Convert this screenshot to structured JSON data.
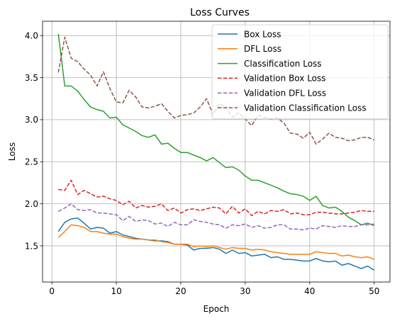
{
  "chart_data": {
    "type": "line",
    "title": "Loss Curves",
    "xlabel": "Epoch",
    "ylabel": "Loss",
    "xlim": [
      -1.45,
      52.45
    ],
    "ylim": [
      1.07,
      4.17
    ],
    "xticks": [
      0,
      10,
      20,
      30,
      40,
      50
    ],
    "yticks": [
      1.5,
      2.0,
      2.5,
      3.0,
      3.5,
      4.0
    ],
    "grid": true,
    "legend": "top-right",
    "x": [
      1,
      2,
      3,
      4,
      5,
      6,
      7,
      8,
      9,
      10,
      11,
      12,
      13,
      14,
      15,
      16,
      17,
      18,
      19,
      20,
      21,
      22,
      23,
      24,
      25,
      26,
      27,
      28,
      29,
      30,
      31,
      32,
      33,
      34,
      35,
      36,
      37,
      38,
      39,
      40,
      41,
      42,
      43,
      44,
      45,
      46,
      47,
      48,
      49,
      50
    ],
    "series": [
      {
        "name": "Box Loss",
        "color": "#1f77b4",
        "dash": "solid",
        "values": [
          1.67,
          1.78,
          1.82,
          1.83,
          1.77,
          1.7,
          1.72,
          1.71,
          1.65,
          1.67,
          1.63,
          1.61,
          1.59,
          1.58,
          1.57,
          1.56,
          1.56,
          1.55,
          1.52,
          1.52,
          1.51,
          1.45,
          1.47,
          1.47,
          1.48,
          1.46,
          1.41,
          1.45,
          1.41,
          1.42,
          1.38,
          1.39,
          1.4,
          1.36,
          1.37,
          1.34,
          1.34,
          1.33,
          1.32,
          1.32,
          1.35,
          1.32,
          1.31,
          1.32,
          1.27,
          1.29,
          1.26,
          1.23,
          1.26,
          1.21
        ]
      },
      {
        "name": "DFL Loss",
        "color": "#ff7f0e",
        "dash": "solid",
        "values": [
          1.6,
          1.67,
          1.75,
          1.74,
          1.72,
          1.67,
          1.67,
          1.65,
          1.64,
          1.64,
          1.61,
          1.59,
          1.58,
          1.58,
          1.57,
          1.57,
          1.55,
          1.54,
          1.52,
          1.52,
          1.52,
          1.49,
          1.5,
          1.49,
          1.5,
          1.48,
          1.46,
          1.48,
          1.47,
          1.47,
          1.45,
          1.46,
          1.45,
          1.43,
          1.42,
          1.41,
          1.4,
          1.4,
          1.4,
          1.4,
          1.43,
          1.42,
          1.41,
          1.41,
          1.38,
          1.39,
          1.37,
          1.36,
          1.37,
          1.34
        ]
      },
      {
        "name": "Classification Loss",
        "color": "#2ca02c",
        "dash": "solid",
        "values": [
          4.02,
          3.4,
          3.4,
          3.34,
          3.24,
          3.15,
          3.12,
          3.1,
          3.02,
          3.03,
          2.94,
          2.9,
          2.86,
          2.81,
          2.79,
          2.82,
          2.71,
          2.72,
          2.66,
          2.61,
          2.61,
          2.58,
          2.55,
          2.51,
          2.55,
          2.49,
          2.43,
          2.44,
          2.4,
          2.33,
          2.28,
          2.28,
          2.25,
          2.22,
          2.19,
          2.15,
          2.12,
          2.11,
          2.09,
          2.04,
          2.09,
          1.98,
          1.95,
          1.96,
          1.91,
          1.84,
          1.8,
          1.75,
          1.77,
          1.74
        ]
      },
      {
        "name": "Validation Box Loss",
        "color": "#d62728",
        "dash": "dashed",
        "values": [
          2.17,
          2.16,
          2.28,
          2.11,
          2.16,
          2.12,
          2.08,
          2.09,
          2.06,
          2.04,
          1.99,
          2.03,
          1.95,
          1.98,
          1.96,
          1.97,
          2.0,
          1.92,
          1.95,
          1.89,
          1.93,
          1.94,
          1.92,
          1.94,
          1.96,
          1.95,
          1.88,
          1.97,
          1.89,
          1.94,
          1.86,
          1.91,
          1.88,
          1.92,
          1.91,
          1.93,
          1.88,
          1.89,
          1.87,
          1.87,
          1.9,
          1.9,
          1.89,
          1.88,
          1.88,
          1.89,
          1.9,
          1.92,
          1.91,
          1.91
        ]
      },
      {
        "name": "Validation DFL Loss",
        "color": "#9467bd",
        "dash": "dashed",
        "values": [
          1.91,
          1.95,
          2.0,
          1.93,
          1.92,
          1.93,
          1.89,
          1.89,
          1.88,
          1.87,
          1.8,
          1.85,
          1.79,
          1.81,
          1.8,
          1.76,
          1.77,
          1.73,
          1.78,
          1.75,
          1.75,
          1.81,
          1.79,
          1.78,
          1.76,
          1.75,
          1.71,
          1.75,
          1.74,
          1.76,
          1.72,
          1.74,
          1.71,
          1.72,
          1.75,
          1.75,
          1.7,
          1.7,
          1.69,
          1.71,
          1.7,
          1.74,
          1.73,
          1.72,
          1.74,
          1.73,
          1.73,
          1.75,
          1.75,
          1.76
        ]
      },
      {
        "name": "Validation Classification Loss",
        "color": "#8c564b",
        "dash": "dashed",
        "values": [
          3.56,
          3.98,
          3.73,
          3.69,
          3.6,
          3.53,
          3.4,
          3.57,
          3.37,
          3.21,
          3.2,
          3.35,
          3.27,
          3.15,
          3.14,
          3.16,
          3.19,
          3.1,
          3.02,
          3.05,
          3.06,
          3.08,
          3.15,
          3.25,
          3.06,
          3.19,
          3.15,
          3.03,
          3.08,
          3.01,
          2.93,
          3.05,
          3.03,
          3.01,
          3.02,
          2.96,
          2.84,
          2.83,
          2.78,
          2.85,
          2.71,
          2.77,
          2.84,
          2.79,
          2.78,
          2.75,
          2.76,
          2.79,
          2.79,
          2.76
        ]
      }
    ]
  }
}
